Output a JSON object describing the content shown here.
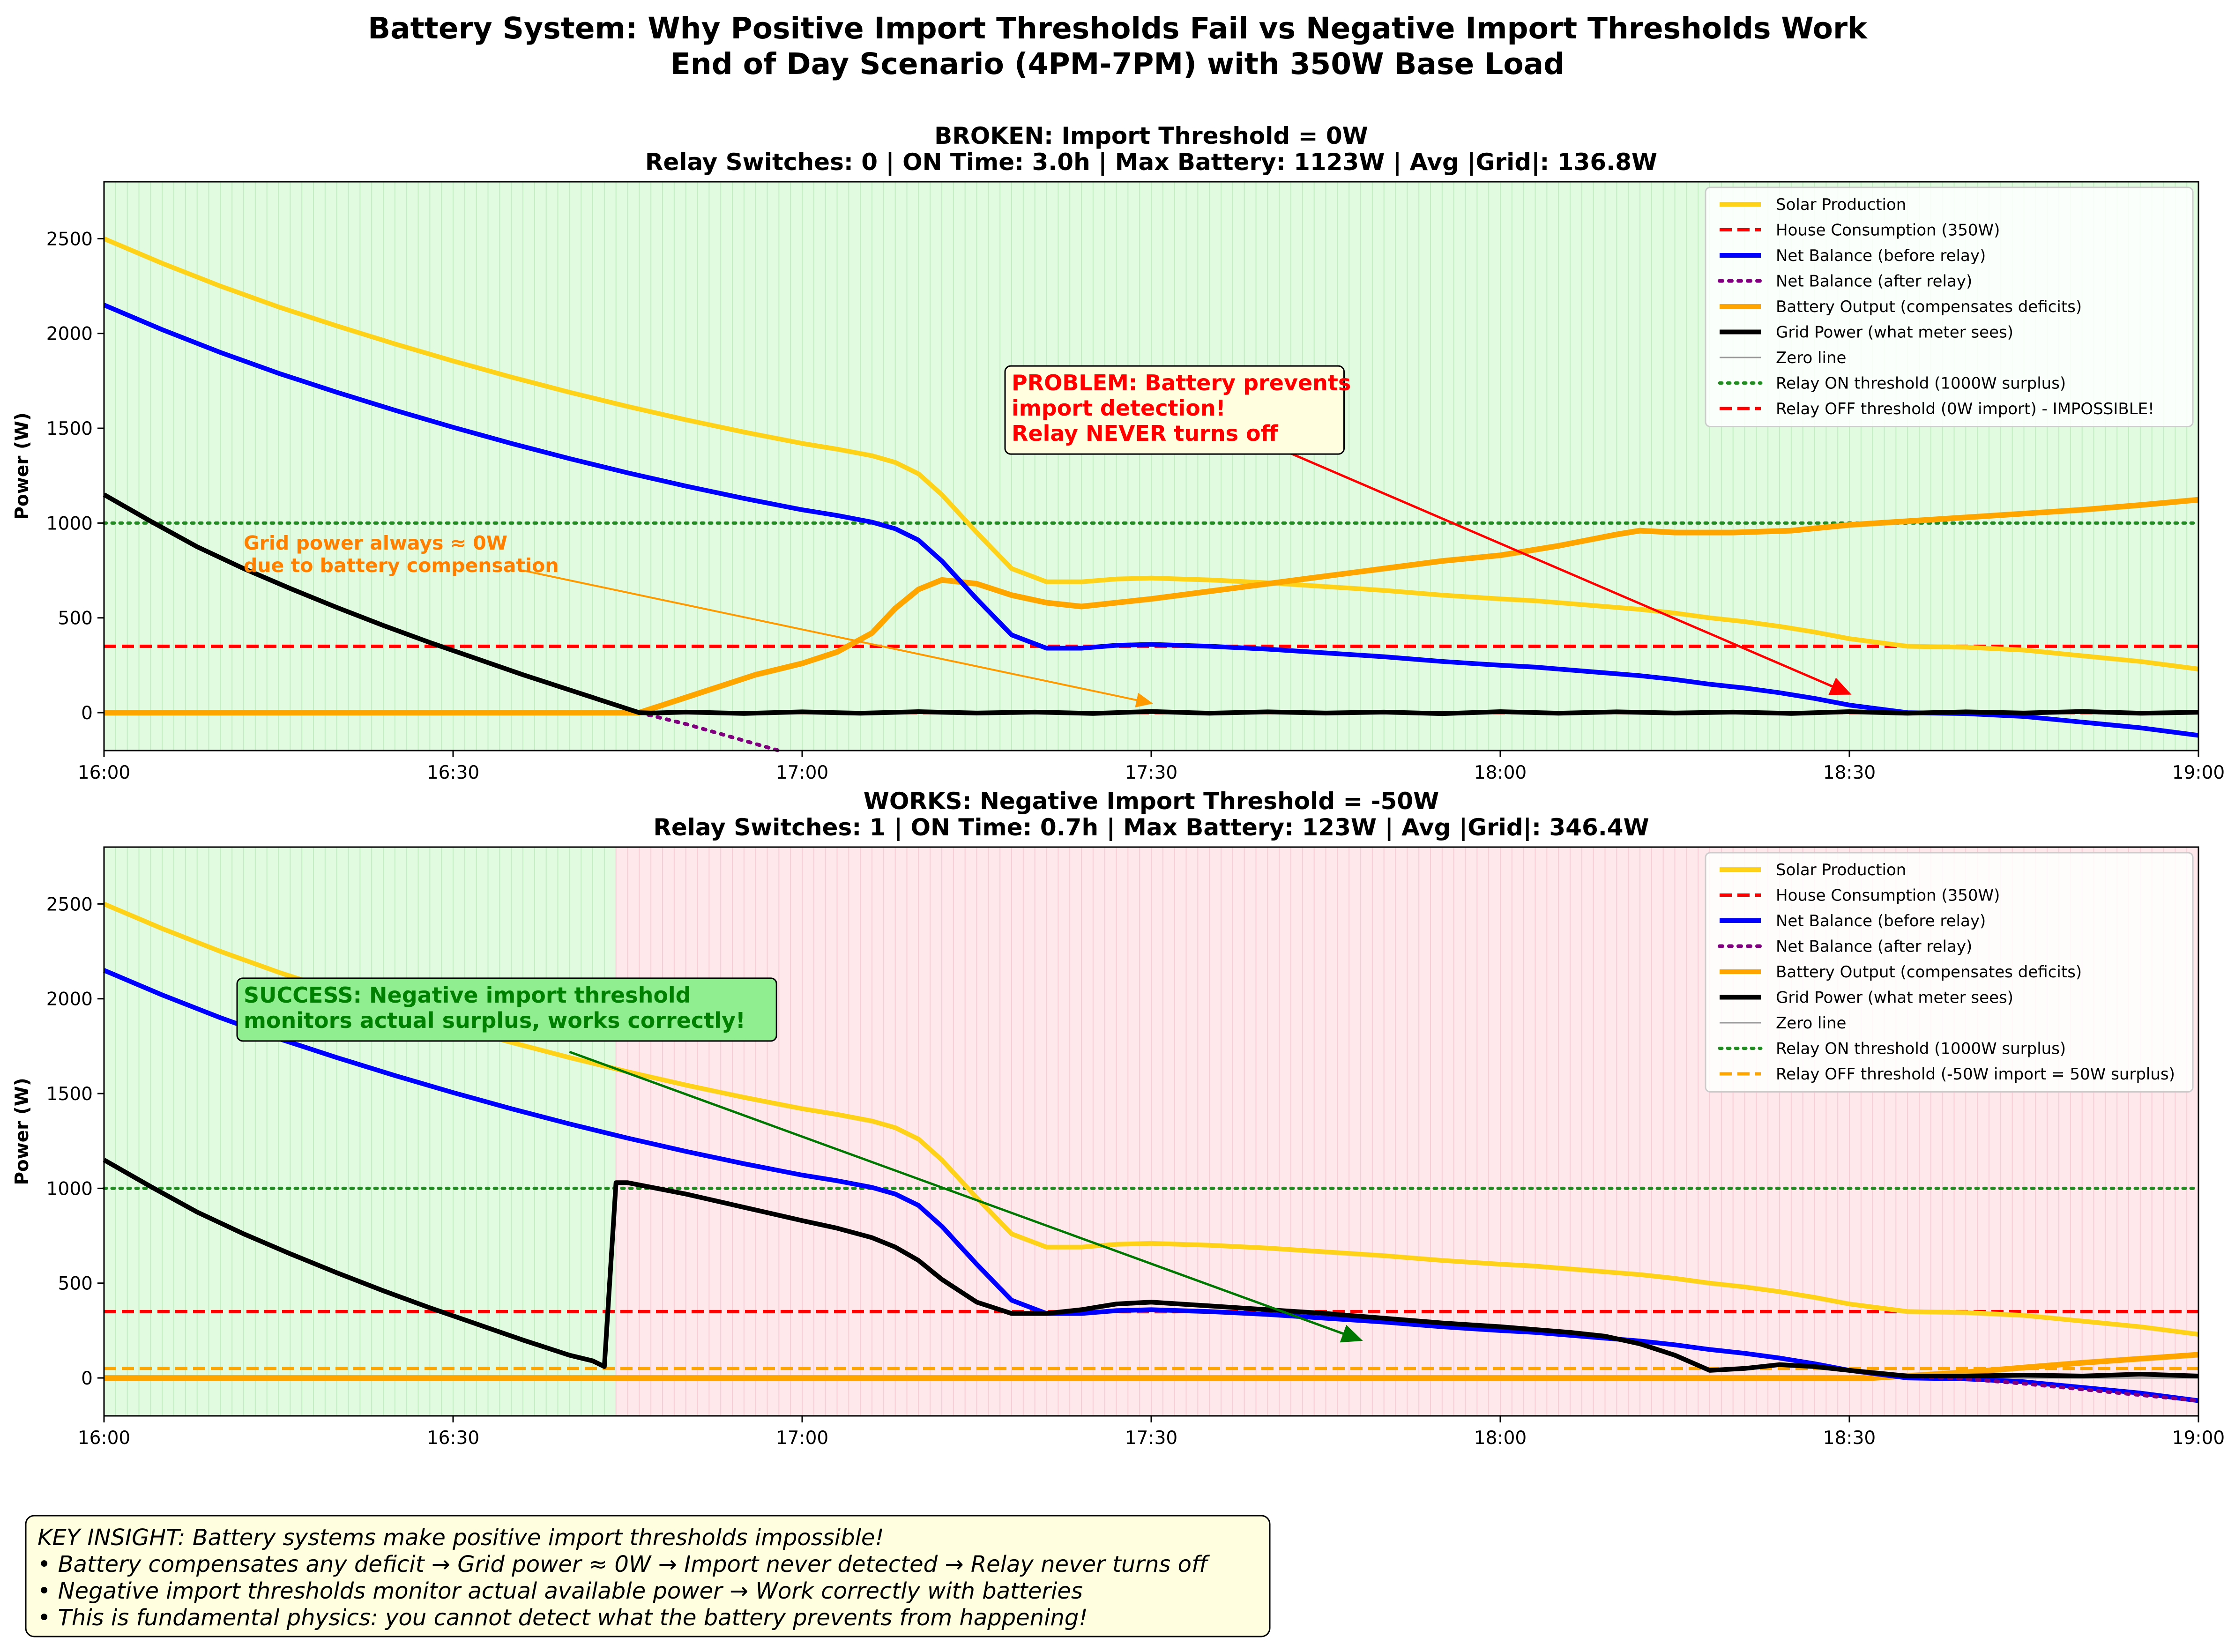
{
  "figure": {
    "title_lines": [
      "Battery System: Why Positive Import Thresholds Fail vs Negative Import Thresholds Work",
      "End of Day Scenario (4PM-7PM) with 350W Base Load"
    ],
    "key_insight_lines": [
      "KEY INSIGHT: Battery systems make positive import thresholds impossible!",
      "• Battery compensates any deficit → Grid power ≈ 0W → Import never detected → Relay never turns off",
      "• Negative import thresholds monitor actual available power → Work correctly with batteries",
      "• This is fundamental physics: you cannot detect what the battery prevents from happening!"
    ]
  },
  "colors": {
    "solar": "#ffd21a",
    "house": "#ff0000",
    "net_before": "#0000ff",
    "net_after": "#800080",
    "battery": "#ffa500",
    "grid": "#000000",
    "zero": "#999999",
    "on_threshold": "#228b22",
    "off_threshold_broken": "#ff0000",
    "off_threshold_works": "#ffa500",
    "relay_on_bg": "#e0fbe0",
    "relay_off_bg": "#ffe8ec"
  },
  "chart_data": [
    {
      "type": "line",
      "title_lines": [
        "BROKEN: Import Threshold = 0W",
        "Relay Switches: 0 | ON Time: 3.0h | Max Battery: 1123W | Avg |Grid|: 136.8W"
      ],
      "ylabel": "Power (W)",
      "xlim": [
        0,
        180
      ],
      "ylim": [
        -200,
        2800
      ],
      "xticks": [
        0,
        30,
        60,
        90,
        120,
        150,
        180
      ],
      "xtick_labels": [
        "16:00",
        "16:30",
        "17:00",
        "17:30",
        "18:00",
        "18:30",
        "19:00"
      ],
      "yticks": [
        0,
        500,
        1000,
        1500,
        2000,
        2500
      ],
      "ytick_labels": [
        "0",
        "500",
        "1000",
        "1500",
        "2000",
        "2500"
      ],
      "relay_on_spans": [
        [
          0,
          180
        ]
      ],
      "relay_off_spans": [],
      "legend": [
        "Solar Production",
        "House Consumption (350W)",
        "Net Balance (before relay)",
        "Net Balance (after relay)",
        "Battery Output (compensates deficits)",
        "Grid Power (what meter sees)",
        "Zero line",
        "Relay ON threshold (1000W surplus)",
        "Relay OFF threshold (0W import) - IMPOSSIBLE!"
      ],
      "series": {
        "solar": {
          "x": [
            0,
            5,
            10,
            15,
            20,
            25,
            30,
            35,
            40,
            45,
            50,
            55,
            60,
            63,
            66,
            68,
            70,
            72,
            75,
            78,
            81,
            84,
            87,
            90,
            95,
            100,
            105,
            110,
            115,
            120,
            123,
            126,
            129,
            132,
            135,
            138,
            141,
            144,
            147,
            150,
            155,
            160,
            165,
            170,
            175,
            180
          ],
          "y": [
            2500,
            2370,
            2250,
            2140,
            2040,
            1945,
            1855,
            1770,
            1690,
            1615,
            1545,
            1480,
            1420,
            1390,
            1355,
            1320,
            1260,
            1150,
            950,
            760,
            690,
            690,
            705,
            710,
            700,
            685,
            665,
            645,
            620,
            600,
            590,
            575,
            560,
            545,
            525,
            500,
            480,
            455,
            425,
            390,
            350,
            345,
            330,
            300,
            270,
            230
          ]
        },
        "house": {
          "x": [
            0,
            180
          ],
          "y": [
            350,
            350
          ]
        },
        "net_before": {
          "x": [
            0,
            5,
            10,
            15,
            20,
            25,
            30,
            35,
            40,
            45,
            50,
            55,
            60,
            63,
            66,
            68,
            70,
            72,
            75,
            78,
            81,
            84,
            87,
            90,
            95,
            100,
            105,
            110,
            115,
            120,
            123,
            126,
            129,
            132,
            135,
            138,
            141,
            144,
            147,
            150,
            155,
            160,
            165,
            170,
            175,
            180
          ],
          "y": [
            2150,
            2020,
            1900,
            1790,
            1690,
            1595,
            1505,
            1420,
            1340,
            1265,
            1195,
            1130,
            1070,
            1040,
            1005,
            970,
            910,
            800,
            600,
            410,
            340,
            340,
            355,
            360,
            350,
            335,
            315,
            295,
            270,
            250,
            240,
            225,
            210,
            195,
            175,
            150,
            130,
            105,
            75,
            40,
            0,
            -5,
            -20,
            -50,
            -80,
            -120
          ]
        },
        "net_after": {
          "x": [
            46,
            50,
            58
          ],
          "y": [
            0,
            -60,
            -200
          ]
        },
        "battery": {
          "x": [
            0,
            46,
            48,
            52,
            56,
            60,
            63,
            66,
            68,
            70,
            72,
            75,
            78,
            81,
            84,
            87,
            90,
            95,
            100,
            105,
            110,
            115,
            120,
            125,
            130,
            132,
            135,
            140,
            145,
            150,
            155,
            160,
            165,
            170,
            175,
            180
          ],
          "y": [
            0,
            0,
            40,
            120,
            200,
            260,
            320,
            420,
            550,
            650,
            700,
            680,
            620,
            580,
            560,
            580,
            600,
            640,
            680,
            720,
            760,
            800,
            830,
            880,
            940,
            960,
            950,
            950,
            960,
            990,
            1010,
            1030,
            1050,
            1070,
            1095,
            1123
          ]
        },
        "grid": {
          "x": [
            0,
            4,
            8,
            12,
            16,
            20,
            24,
            28,
            32,
            36,
            40,
            44,
            46,
            47,
            50,
            55,
            60,
            65,
            70,
            75,
            80,
            85,
            90,
            95,
            100,
            105,
            110,
            115,
            120,
            125,
            130,
            135,
            140,
            145,
            150,
            155,
            160,
            165,
            170,
            175,
            180
          ],
          "y": [
            1150,
            1010,
            875,
            760,
            655,
            555,
            460,
            370,
            285,
            200,
            120,
            40,
            0,
            -2,
            3,
            -4,
            4,
            -3,
            5,
            -2,
            3,
            -4,
            6,
            -3,
            4,
            -2,
            3,
            -5,
            5,
            -3,
            4,
            -2,
            3,
            -4,
            5,
            -3,
            4,
            -2,
            6,
            -3,
            2
          ]
        },
        "zero": {
          "x": [
            0,
            180
          ],
          "y": [
            0,
            0
          ]
        },
        "on_threshold": {
          "x": [
            0,
            180
          ],
          "y": [
            1000,
            1000
          ]
        },
        "off_threshold": {
          "x": [
            0,
            180
          ],
          "y": [
            0,
            0
          ]
        }
      },
      "annotations": [
        {
          "lines": [
            "Grid power always ≈ 0W",
            "due to battery compensation"
          ],
          "text_at": [
            12,
            860
          ],
          "arrow_from": [
            36,
            750
          ],
          "arrow_to": [
            90,
            50
          ],
          "style": "orange"
        },
        {
          "lines": [
            "PROBLEM: Battery prevents",
            "import detection!",
            "Relay NEVER turns off"
          ],
          "text_at": [
            78,
            1700
          ],
          "arrow_from": [
            100,
            1420
          ],
          "arrow_to": [
            150,
            100
          ],
          "style": "red"
        }
      ]
    },
    {
      "type": "line",
      "title_lines": [
        "WORKS: Negative Import Threshold = -50W",
        "Relay Switches: 1 | ON Time: 0.7h | Max Battery: 123W | Avg |Grid|: 346.4W"
      ],
      "ylabel": "Power (W)",
      "xlim": [
        0,
        180
      ],
      "ylim": [
        -200,
        2800
      ],
      "xticks": [
        0,
        30,
        60,
        90,
        120,
        150,
        180
      ],
      "xtick_labels": [
        "16:00",
        "16:30",
        "17:00",
        "17:30",
        "18:00",
        "18:30",
        "19:00"
      ],
      "yticks": [
        0,
        500,
        1000,
        1500,
        2000,
        2500
      ],
      "ytick_labels": [
        "0",
        "500",
        "1000",
        "1500",
        "2000",
        "2500"
      ],
      "relay_on_spans": [
        [
          0,
          44
        ]
      ],
      "relay_off_spans": [
        [
          44,
          180
        ]
      ],
      "legend": [
        "Solar Production",
        "House Consumption (350W)",
        "Net Balance (before relay)",
        "Net Balance (after relay)",
        "Battery Output (compensates deficits)",
        "Grid Power (what meter sees)",
        "Zero line",
        "Relay ON threshold (1000W surplus)",
        "Relay OFF threshold (-50W import = 50W surplus)"
      ],
      "series": {
        "solar": {
          "x": [
            0,
            5,
            10,
            15,
            20,
            25,
            30,
            35,
            40,
            45,
            50,
            55,
            60,
            63,
            66,
            68,
            70,
            72,
            75,
            78,
            81,
            84,
            87,
            90,
            95,
            100,
            105,
            110,
            115,
            120,
            123,
            126,
            129,
            132,
            135,
            138,
            141,
            144,
            147,
            150,
            155,
            160,
            165,
            170,
            175,
            180
          ],
          "y": [
            2500,
            2370,
            2250,
            2140,
            2040,
            1945,
            1855,
            1770,
            1690,
            1615,
            1545,
            1480,
            1420,
            1390,
            1355,
            1320,
            1260,
            1150,
            950,
            760,
            690,
            690,
            705,
            710,
            700,
            685,
            665,
            645,
            620,
            600,
            590,
            575,
            560,
            545,
            525,
            500,
            480,
            455,
            425,
            390,
            350,
            345,
            330,
            300,
            270,
            230
          ]
        },
        "house": {
          "x": [
            0,
            180
          ],
          "y": [
            350,
            350
          ]
        },
        "net_before": {
          "x": [
            0,
            5,
            10,
            15,
            20,
            25,
            30,
            35,
            40,
            45,
            50,
            55,
            60,
            63,
            66,
            68,
            70,
            72,
            75,
            78,
            81,
            84,
            87,
            90,
            95,
            100,
            105,
            110,
            115,
            120,
            123,
            126,
            129,
            132,
            135,
            138,
            141,
            144,
            147,
            150,
            155,
            160,
            165,
            170,
            175,
            180
          ],
          "y": [
            2150,
            2020,
            1900,
            1790,
            1690,
            1595,
            1505,
            1420,
            1340,
            1265,
            1195,
            1130,
            1070,
            1040,
            1005,
            970,
            910,
            800,
            600,
            410,
            340,
            340,
            355,
            360,
            350,
            335,
            315,
            295,
            270,
            250,
            240,
            225,
            210,
            195,
            175,
            150,
            130,
            105,
            75,
            40,
            0,
            -5,
            -20,
            -50,
            -80,
            -120
          ]
        },
        "net_after": {
          "x": [
            44,
            45,
            50,
            55,
            60,
            63,
            66,
            68,
            70,
            72,
            75,
            78,
            81,
            84,
            87,
            90,
            95,
            100,
            105,
            110,
            115,
            120,
            123,
            126,
            129,
            132,
            135,
            138,
            141,
            144,
            147,
            150,
            155,
            160,
            165,
            170,
            175,
            180
          ],
          "y": [
            1030,
            1030,
            970,
            900,
            830,
            790,
            740,
            690,
            620,
            520,
            400,
            340,
            340,
            360,
            390,
            400,
            380,
            360,
            340,
            315,
            290,
            270,
            255,
            240,
            220,
            180,
            120,
            40,
            50,
            70,
            60,
            40,
            10,
            -5,
            -30,
            -60,
            -90,
            -120
          ]
        },
        "battery": {
          "x": [
            0,
            152,
            160,
            170,
            180
          ],
          "y": [
            0,
            0,
            30,
            80,
            123
          ]
        },
        "grid": {
          "x": [
            0,
            4,
            8,
            12,
            16,
            20,
            24,
            28,
            32,
            36,
            40,
            42,
            43,
            44,
            45,
            50,
            55,
            60,
            63,
            66,
            68,
            70,
            72,
            75,
            78,
            81,
            84,
            87,
            90,
            95,
            100,
            105,
            110,
            115,
            120,
            123,
            126,
            129,
            132,
            135,
            138,
            141,
            144,
            147,
            150,
            155,
            160,
            165,
            170,
            175,
            180
          ],
          "y": [
            1150,
            1010,
            875,
            760,
            655,
            555,
            460,
            370,
            285,
            200,
            120,
            90,
            60,
            1030,
            1030,
            970,
            900,
            830,
            790,
            740,
            690,
            620,
            520,
            400,
            340,
            340,
            360,
            390,
            400,
            380,
            360,
            340,
            315,
            290,
            270,
            255,
            240,
            220,
            180,
            120,
            40,
            50,
            70,
            60,
            40,
            10,
            10,
            15,
            10,
            20,
            10
          ]
        },
        "zero": {
          "x": [
            0,
            180
          ],
          "y": [
            0,
            0
          ]
        },
        "on_threshold": {
          "x": [
            0,
            180
          ],
          "y": [
            1000,
            1000
          ]
        },
        "off_threshold": {
          "x": [
            0,
            180
          ],
          "y": [
            50,
            50
          ]
        }
      },
      "annotations": [
        {
          "lines": [
            "SUCCESS: Negative import threshold",
            "monitors actual surplus, works correctly!"
          ],
          "text_at": [
            12,
            1980
          ],
          "arrow_from": [
            40,
            1720
          ],
          "arrow_to": [
            108,
            200
          ],
          "style": "green"
        }
      ]
    }
  ]
}
